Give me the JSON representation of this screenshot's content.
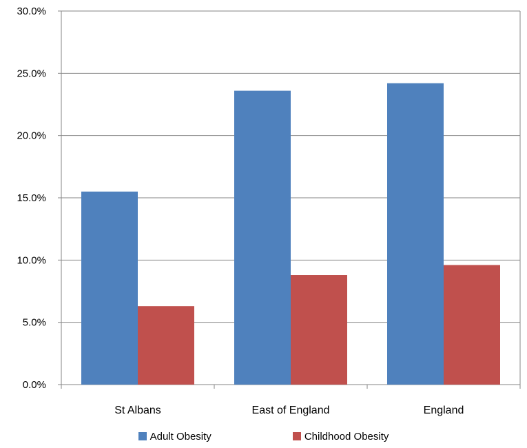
{
  "chart_data": {
    "type": "bar",
    "categories": [
      "St Albans",
      "East of England",
      "England"
    ],
    "series": [
      {
        "name": "Adult Obesity",
        "values": [
          15.5,
          23.6,
          24.2
        ],
        "color": "#4f81bd"
      },
      {
        "name": "Childhood Obesity",
        "values": [
          6.3,
          8.8,
          9.6
        ],
        "color": "#c0504d"
      }
    ],
    "ylim": [
      0,
      30
    ],
    "yticks": [
      "0.0%",
      "5.0%",
      "10.0%",
      "15.0%",
      "20.0%",
      "25.0%",
      "30.0%"
    ],
    "grid": true,
    "legend_position": "bottom"
  }
}
